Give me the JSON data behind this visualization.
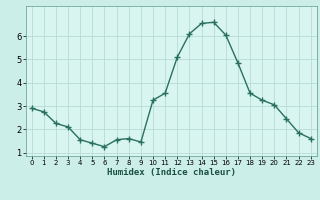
{
  "x": [
    0,
    1,
    2,
    3,
    4,
    5,
    6,
    7,
    8,
    9,
    10,
    11,
    12,
    13,
    14,
    15,
    16,
    17,
    18,
    19,
    20,
    21,
    22,
    23
  ],
  "y": [
    2.9,
    2.75,
    2.25,
    2.1,
    1.55,
    1.4,
    1.25,
    1.55,
    1.6,
    1.45,
    3.25,
    3.55,
    5.1,
    6.1,
    6.55,
    6.6,
    6.05,
    4.85,
    3.55,
    3.25,
    3.05,
    2.45,
    1.85,
    1.6
  ],
  "xlabel": "Humidex (Indice chaleur)",
  "bg_color": "#cceee8",
  "line_color": "#2a7060",
  "grid_color": "#b8dbd6",
  "axis_bg": "#d8f5f0",
  "xlim": [
    -0.5,
    23.5
  ],
  "ylim": [
    0.85,
    7.3
  ],
  "yticks": [
    1,
    2,
    3,
    4,
    5,
    6
  ],
  "xticks": [
    0,
    1,
    2,
    3,
    4,
    5,
    6,
    7,
    8,
    9,
    10,
    11,
    12,
    13,
    14,
    15,
    16,
    17,
    18,
    19,
    20,
    21,
    22,
    23
  ]
}
